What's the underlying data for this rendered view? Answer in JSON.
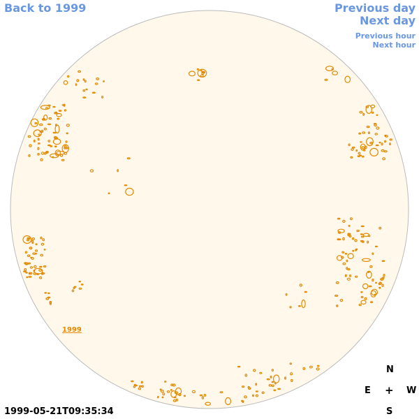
{
  "nav": {
    "back_label": "Back to 1999",
    "prev_day_label": "Previous day",
    "next_day_label": "Next day",
    "prev_hour_label": "Previous hour",
    "next_hour_label": "Next hour"
  },
  "disk": {
    "year_label": "1999",
    "fill_color": "#fff8eb",
    "outline_color": "#bbbbbb",
    "contour_color": "#e38a00"
  },
  "timestamp": "1999-05-21T09:35:34",
  "compass": {
    "north": "N",
    "east": "E",
    "west": "W",
    "south": "S",
    "center": "+"
  }
}
